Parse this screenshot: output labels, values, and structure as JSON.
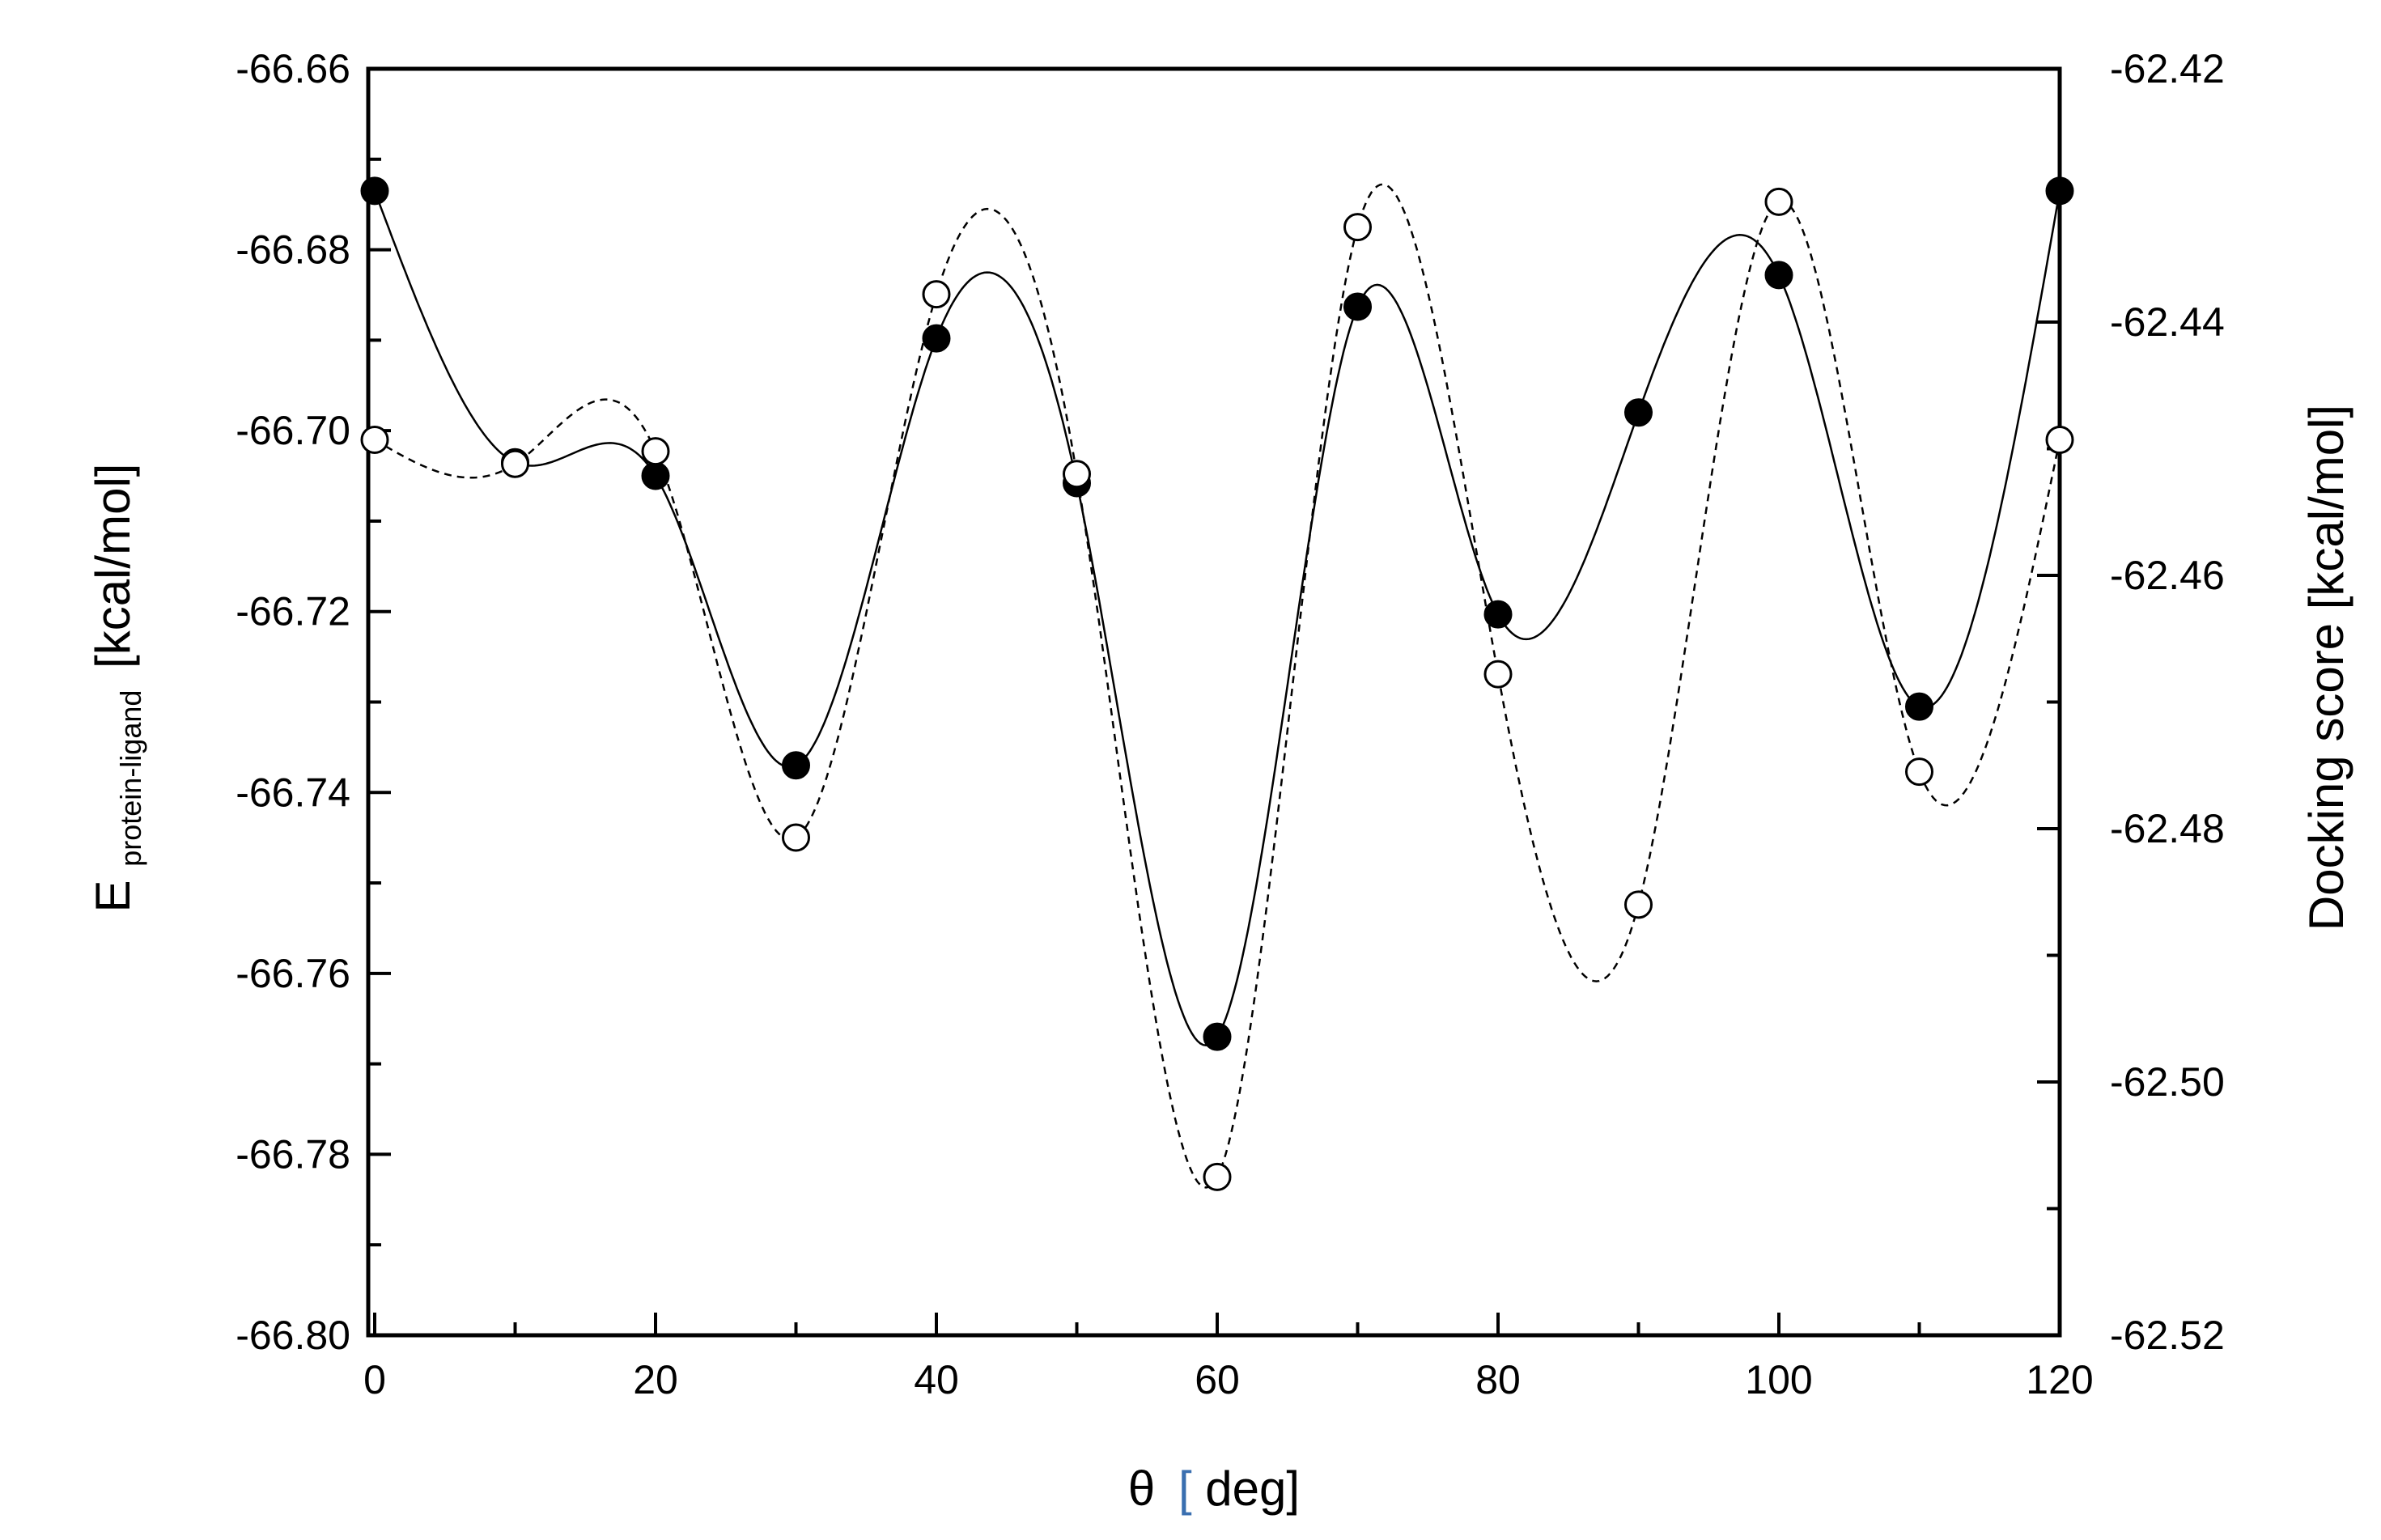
{
  "chart_data": {
    "type": "line",
    "title": "",
    "xlabel": {
      "symbol": "θ",
      "bracket_open": "[",
      "unit": "deg]"
    },
    "ylabel_left": {
      "main": "E",
      "subscript": "protein-ligand",
      "unit": "[kcal/mol]"
    },
    "ylabel_right": "Docking score [kcal/mol]",
    "xlim": [
      0,
      120
    ],
    "ylim_left": [
      -66.8,
      -66.66
    ],
    "ylim_right": [
      -62.52,
      -62.42
    ],
    "x_ticks": [
      "0",
      "20",
      "40",
      "60",
      "80",
      "100",
      "120"
    ],
    "x_tick_values": [
      0,
      20,
      40,
      60,
      80,
      100,
      120
    ],
    "y_left_ticks": [
      "-66.66",
      "-66.68",
      "-66.70",
      "-66.72",
      "-66.74",
      "-66.76",
      "-66.78",
      "-66.80"
    ],
    "y_left_tick_values": [
      -66.66,
      -66.68,
      -66.7,
      -66.72,
      -66.74,
      -66.76,
      -66.78,
      -66.8
    ],
    "y_right_ticks": [
      "-62.42",
      "-62.44",
      "-62.46",
      "-62.48",
      "-62.50",
      "-62.52"
    ],
    "y_right_tick_values": [
      -62.42,
      -62.44,
      -62.46,
      -62.48,
      -62.5,
      -62.52
    ],
    "grid": false,
    "series": [
      {
        "name": "E protein-ligand",
        "axis": "left",
        "marker": "filled-circle",
        "line": "solid",
        "x": [
          0,
          10,
          20,
          30,
          40,
          50,
          60,
          70,
          80,
          90,
          100,
          110,
          120
        ],
        "values": [
          -66.6735,
          -66.7035,
          -66.705,
          -66.737,
          -66.6898,
          -66.7058,
          -66.767,
          -66.6863,
          -66.7203,
          -66.698,
          -66.6828,
          -66.7305,
          -66.6735
        ]
      },
      {
        "name": "Docking score",
        "axis": "right",
        "marker": "open-circle",
        "line": "dashed",
        "x": [
          0,
          10,
          20,
          30,
          40,
          50,
          60,
          70,
          80,
          90,
          100,
          110,
          120
        ],
        "values": [
          -62.4493,
          -62.4512,
          -62.4502,
          -62.4807,
          -62.4378,
          -62.452,
          -62.5075,
          -62.4325,
          -62.4678,
          -62.486,
          -62.4305,
          -62.4755,
          -62.4493
        ]
      }
    ]
  },
  "colors": {
    "axis": "#000000",
    "line": "#000000",
    "marker_fill_solid": "#000000",
    "marker_fill_open": "#ffffff",
    "background": "#ffffff"
  }
}
